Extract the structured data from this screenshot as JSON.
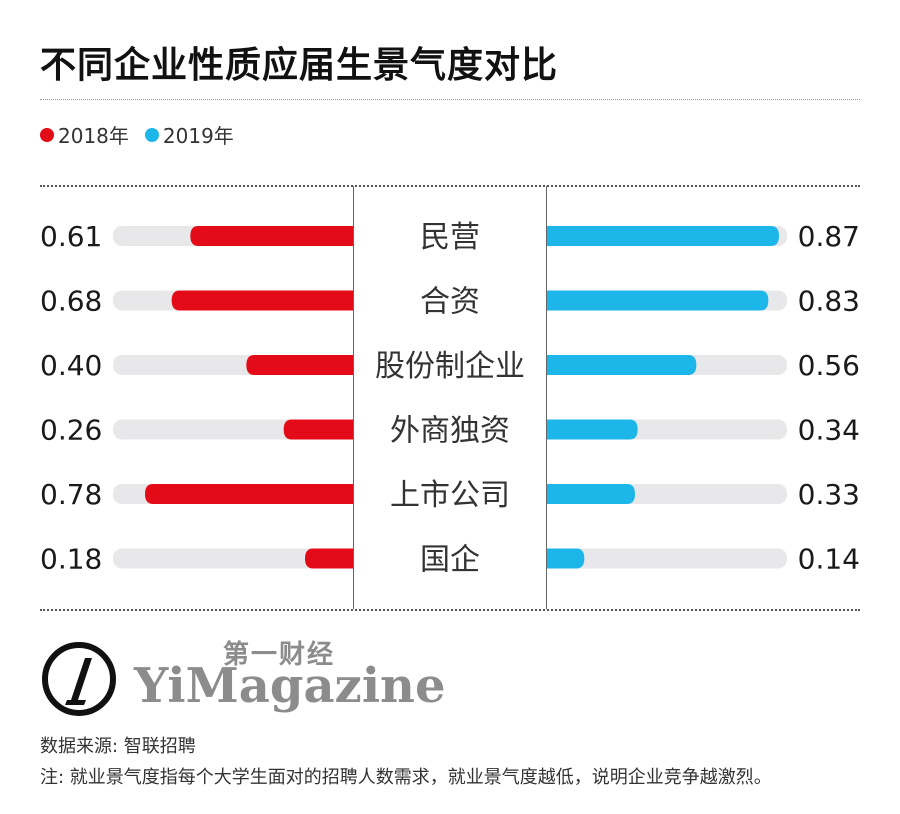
{
  "title": "不同企业性质应届生景气度对比",
  "legend": {
    "items": [
      {
        "label": "2018年",
        "color": "#e30b17"
      },
      {
        "label": "2019年",
        "color": "#1db6e9"
      }
    ]
  },
  "chart_data": {
    "type": "bar",
    "title": "不同企业性质应届生景气度对比",
    "categories": [
      "民营",
      "合资",
      "股份制企业",
      "外商独资",
      "上市公司",
      "国企"
    ],
    "series": [
      {
        "name": "2018年",
        "values": [
          0.61,
          0.68,
          0.4,
          0.26,
          0.78,
          0.18
        ],
        "labels": [
          "0.61",
          "0.68",
          "0.40",
          "0.26",
          "0.78",
          "0.18"
        ],
        "color": "#e30b17",
        "direction": "left"
      },
      {
        "name": "2019年",
        "values": [
          0.87,
          0.83,
          0.56,
          0.34,
          0.33,
          0.14
        ],
        "labels": [
          "0.87",
          "0.83",
          "0.56",
          "0.34",
          "0.33",
          "0.14"
        ],
        "color": "#1db6e9",
        "direction": "right"
      }
    ],
    "xlim": [
      0,
      0.9
    ],
    "track_color": "#e8e8ea",
    "grid": false,
    "legend_position": "top-left"
  },
  "logo": {
    "cn": "第一财经",
    "en": "YiMagazine",
    "color": "#8c8c8c",
    "icon": "yicai-logo-icon"
  },
  "footer": {
    "source": "数据来源: 智联招聘",
    "note": "注: 就业景气度指每个大学生面对的招聘人数需求，就业景气度越低，说明企业竞争越激烈。"
  }
}
